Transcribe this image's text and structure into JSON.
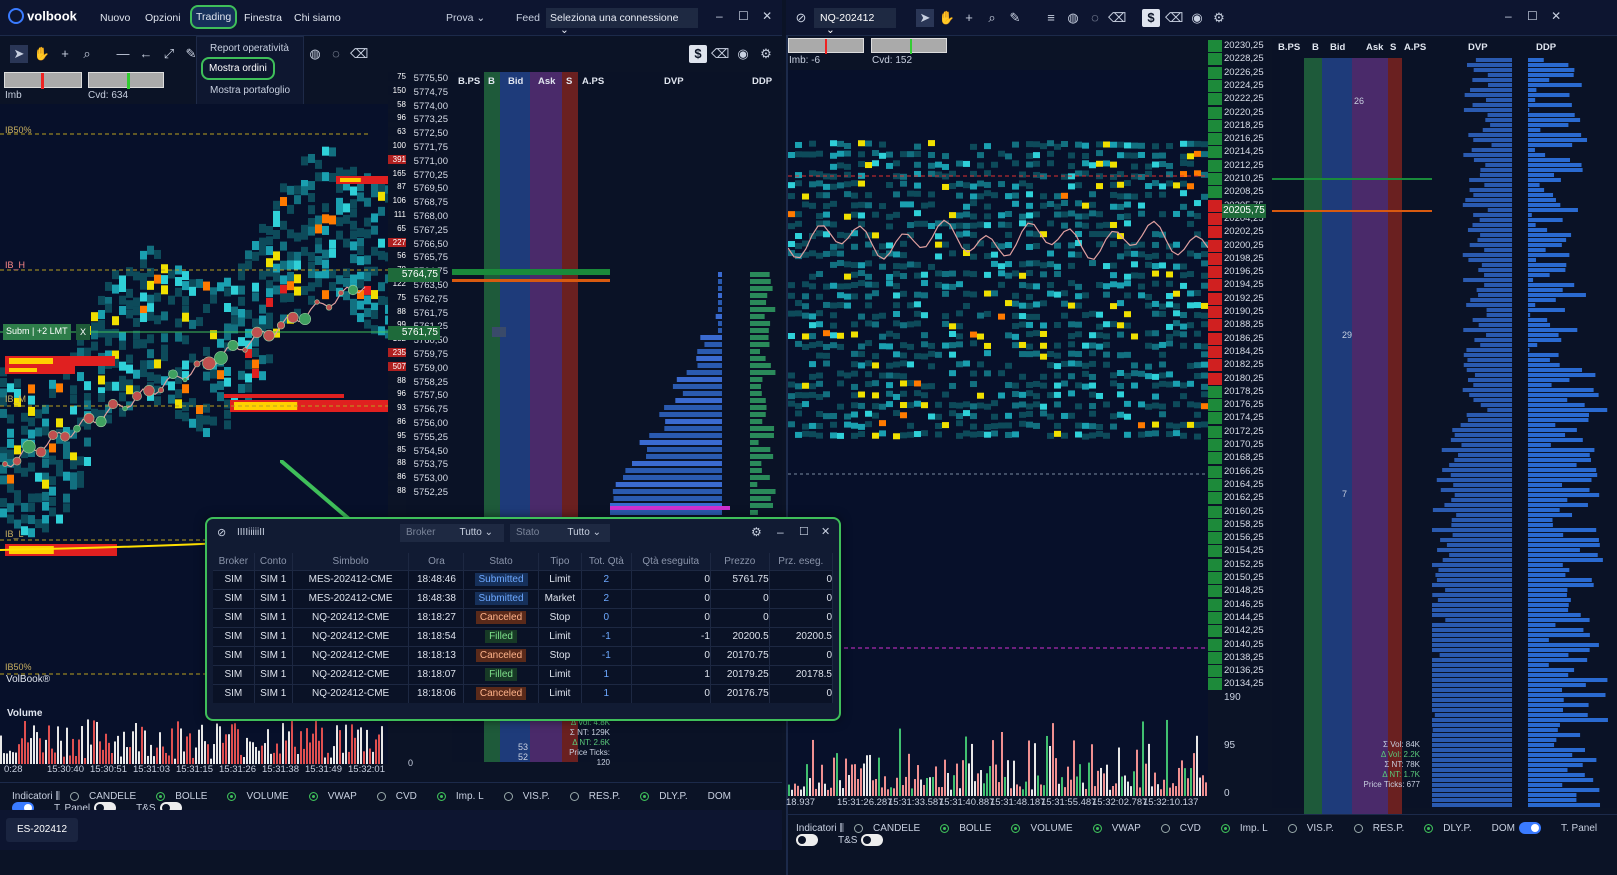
{
  "app": {
    "name": "volbook"
  },
  "menu": [
    "Nuovo",
    "Opzioni",
    "Trading",
    "Finestra",
    "Chi siamo"
  ],
  "toolbar": {
    "prova": "Prova",
    "feed": "Feed",
    "connection": "Seleziona una connessione"
  },
  "trading_menu": [
    "Report operatività",
    "Mostra ordini",
    "Mostra portafoglio"
  ],
  "left": {
    "imb_label": "Imb",
    "cvd_label": "Cvd: 634",
    "ib_labels": [
      "IB50%",
      "IB_H",
      "IB_M",
      "IB_L",
      "IB50%"
    ],
    "order_tag": "Subm | +2 LMT",
    "order_tag_x": "X",
    "watermark": "VolBook®",
    "volume_label": "Volume",
    "prices": [
      "5775,50",
      "5774,75",
      "5774,00",
      "5773,25",
      "5772,50",
      "5771,75",
      "5771,00",
      "5770,25",
      "5769,50",
      "5768,75",
      "5768,00",
      "5767,25",
      "5766,50",
      "5765,75",
      "5764,75",
      "5763,50",
      "5762,75",
      "5761,75",
      "5761,25",
      "5760,50",
      "5759,75",
      "5759,00",
      "5758,25",
      "5757,50",
      "5756,75",
      "5756,00",
      "5755,25",
      "5754,50",
      "5753,75",
      "5753,00",
      "5752,25"
    ],
    "vols": [
      "75",
      "150",
      "58",
      "96",
      "63",
      "100",
      "391",
      "165",
      "87",
      "106",
      "111",
      "65",
      "227",
      "56",
      "78",
      "122",
      "75",
      "88",
      "99",
      "182",
      "235",
      "507",
      "88",
      "96",
      "93",
      "86",
      "95",
      "85",
      "88",
      "86",
      "88"
    ],
    "last_price": "5764,75",
    "order_price": "5761,75",
    "dom_headers": [
      "B.PS",
      "B",
      "Bid",
      "Ask",
      "S",
      "A.PS",
      "DVP",
      "DDP"
    ],
    "times": [
      "0:28",
      "15:30:40",
      "15:30:51",
      "15:31:03",
      "15:31:15",
      "15:31:26",
      "15:31:38",
      "15:31:49",
      "15:32:01"
    ],
    "stats": [
      "Δ Vol: 4.8K",
      "Σ NT: 129K",
      "Δ NT: 2.6K",
      "Price Ticks: 120"
    ],
    "vol_scale": "0",
    "small_nums": [
      "53",
      "52"
    ],
    "tab_label": "ES-202412"
  },
  "right": {
    "symbol": "NQ-202412",
    "imb_label": "Imb: -6",
    "cvd_label": "Cvd: 152",
    "prices": [
      "20230,25",
      "20228,25",
      "20226,25",
      "20224,25",
      "20222,25",
      "20220,25",
      "20218,25",
      "20216,25",
      "20214,25",
      "20212,25",
      "20210,25",
      "20208,25",
      "20205,75",
      "20204,25",
      "20202,25",
      "20200,25",
      "20198,25",
      "20196,25",
      "20194,25",
      "20192,25",
      "20190,25",
      "20188,25",
      "20186,25",
      "20184,25",
      "20182,25",
      "20180,25",
      "20178,25",
      "20176,25",
      "20174,25",
      "20172,25",
      "20170,25",
      "20168,25",
      "20166,25",
      "20164,25",
      "20162,25",
      "20160,25",
      "20158,25",
      "20156,25",
      "20154,25",
      "20152,25",
      "20150,25",
      "20148,25",
      "20146,25",
      "20144,25",
      "20142,25",
      "20140,25",
      "20138,25",
      "20136,25",
      "20134,25"
    ],
    "last_price": "20205,75",
    "dom_headers": [
      "B.PS",
      "B",
      "Bid",
      "Ask",
      "S",
      "A.PS",
      "DVP",
      "DDP"
    ],
    "times": [
      "18.937",
      "15:31:26.287",
      "15:31:33.587",
      "15:31:40.887",
      "15:31:48.187",
      "15:31:55.487",
      "15:32:02.787",
      "15:32:10.137"
    ],
    "vol_scale": [
      "190",
      "95",
      "0"
    ],
    "dom_nums": [
      "26",
      "29",
      "7"
    ],
    "stats": [
      "Σ Vol: 84K",
      "Δ Vol: 2.2K",
      "Σ NT: 78K",
      "Δ NT: 1.7K",
      "Price Ticks: 677"
    ]
  },
  "bottom": {
    "indicators": "Indicatori",
    "opts": [
      "CANDELE",
      "BOLLE",
      "VOLUME",
      "VWAP",
      "CVD",
      "Imp. L",
      "VIS.P.",
      "RES.P.",
      "DLY.P."
    ],
    "toggles": [
      "DOM",
      "T. Panel",
      "T&S"
    ]
  },
  "orders": {
    "title": "IIIIiiiiiII",
    "broker_label": "Broker",
    "broker_val": "Tutto",
    "stato_label": "Stato",
    "stato_val": "Tutto",
    "headers": [
      "Broker",
      "Conto",
      "Simbolo",
      "Ora",
      "Stato",
      "Tipo",
      "Tot. Qtà",
      "Qtà eseguita",
      "Prezzo",
      "Prz. eseg."
    ],
    "rows": [
      [
        "SIM",
        "SIM 1",
        "MES-202412-CME",
        "18:48:46",
        "Submitted",
        "Limit",
        "2",
        "0",
        "5761.75",
        "0"
      ],
      [
        "SIM",
        "SIM 1",
        "MES-202412-CME",
        "18:48:38",
        "Submitted",
        "Market",
        "2",
        "0",
        "0",
        "0"
      ],
      [
        "SIM",
        "SIM 1",
        "NQ-202412-CME",
        "18:18:27",
        "Canceled",
        "Stop",
        "0",
        "0",
        "0",
        "0"
      ],
      [
        "SIM",
        "SIM 1",
        "NQ-202412-CME",
        "18:18:54",
        "Filled",
        "Limit",
        "-1",
        "-1",
        "20200.5",
        "20200.5"
      ],
      [
        "SIM",
        "SIM 1",
        "NQ-202412-CME",
        "18:18:13",
        "Canceled",
        "Stop",
        "-1",
        "0",
        "20170.75",
        "0"
      ],
      [
        "SIM",
        "SIM 1",
        "NQ-202412-CME",
        "18:18:07",
        "Filled",
        "Limit",
        "1",
        "1",
        "20179.25",
        "20178.5"
      ],
      [
        "SIM",
        "SIM 1",
        "NQ-202412-CME",
        "18:18:06",
        "Canceled",
        "Limit",
        "1",
        "0",
        "20176.75",
        "0"
      ]
    ]
  }
}
